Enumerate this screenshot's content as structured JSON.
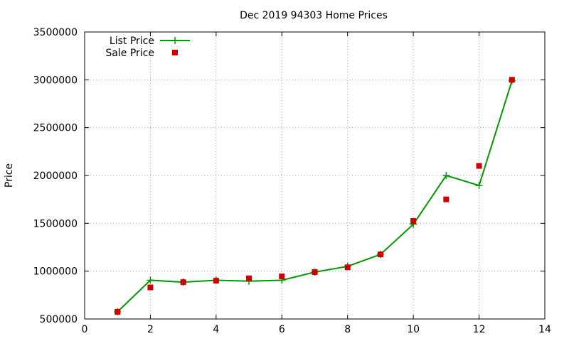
{
  "chart_data": {
    "type": "line",
    "title": "Dec 2019 94303 Home Prices",
    "xlabel": "",
    "ylabel": "Price",
    "xlim": [
      0,
      14
    ],
    "ylim": [
      500000,
      3500000
    ],
    "x_ticks": [
      0,
      2,
      4,
      6,
      8,
      10,
      12,
      14
    ],
    "y_ticks": [
      500000,
      1000000,
      1500000,
      2000000,
      2500000,
      3000000,
      3500000
    ],
    "x_tick_labels": [
      "0",
      "2",
      "4",
      "6",
      "8",
      "10",
      "12",
      "14"
    ],
    "y_tick_labels": [
      "500000",
      "1000000",
      "1500000",
      "2000000",
      "2500000",
      "3000000",
      "3500000"
    ],
    "grid": true,
    "legend_position": "top-left",
    "series": [
      {
        "name": "List Price",
        "style": "line-plus",
        "color": "#009900",
        "x": [
          1,
          2,
          3,
          4,
          5,
          6,
          7,
          8,
          9,
          10,
          11,
          12,
          13
        ],
        "y": [
          575000,
          905000,
          885000,
          905000,
          895000,
          905000,
          990000,
          1050000,
          1175000,
          1490000,
          2000000,
          1895000,
          2990000
        ]
      },
      {
        "name": "Sale Price",
        "style": "square",
        "color": "#cc0000",
        "x": [
          1,
          2,
          3,
          4,
          5,
          6,
          7,
          8,
          9,
          10,
          11,
          12,
          13
        ],
        "y": [
          575000,
          830000,
          885000,
          900000,
          925000,
          945000,
          990000,
          1040000,
          1175000,
          1525000,
          1750000,
          2100000,
          3000000
        ]
      }
    ]
  }
}
